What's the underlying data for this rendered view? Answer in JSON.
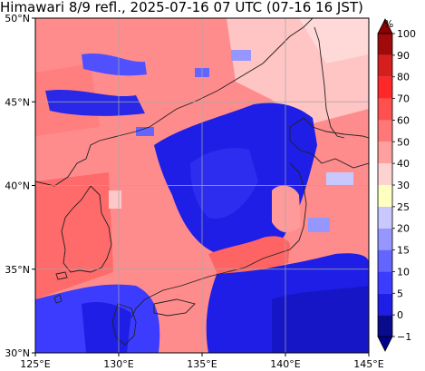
{
  "title": "Himawari 8/9 refl., 2025-07-16 07 UTC (07-16 16 JST)",
  "map": {
    "lon_range": [
      125,
      145
    ],
    "lat_range": [
      30,
      50
    ],
    "lon_ticks": [
      {
        "value": 125,
        "label": "125°E"
      },
      {
        "value": 130,
        "label": "130°E"
      },
      {
        "value": 135,
        "label": "135°E"
      },
      {
        "value": 140,
        "label": "140°E"
      },
      {
        "value": 145,
        "label": "145°E"
      }
    ],
    "lat_ticks": [
      {
        "value": 30,
        "label": "30°N"
      },
      {
        "value": 35,
        "label": "35°N"
      },
      {
        "value": 40,
        "label": "40°N"
      },
      {
        "value": 45,
        "label": "45°N"
      },
      {
        "value": 50,
        "label": "50°N"
      }
    ],
    "grid": true
  },
  "colorbar": {
    "unit": "%",
    "bounds": [
      -1,
      0,
      5,
      10,
      15,
      20,
      25,
      30,
      40,
      50,
      60,
      70,
      80,
      90,
      100
    ],
    "labels": [
      "−1",
      "0",
      "5",
      "10",
      "15",
      "20",
      "25",
      "30",
      "40",
      "50",
      "60",
      "70",
      "80",
      "90",
      "100"
    ],
    "colors": [
      "#0a0a8c",
      "#1e1ee6",
      "#3c3cff",
      "#6464ff",
      "#9696ff",
      "#c8c8ff",
      "#ffffc0",
      "#ffd2d2",
      "#ffa0a0",
      "#ff7878",
      "#ff5050",
      "#ff2828",
      "#d71e1e",
      "#a00a0a"
    ],
    "under_color": "#00008c",
    "over_color": "#8c0000"
  }
}
